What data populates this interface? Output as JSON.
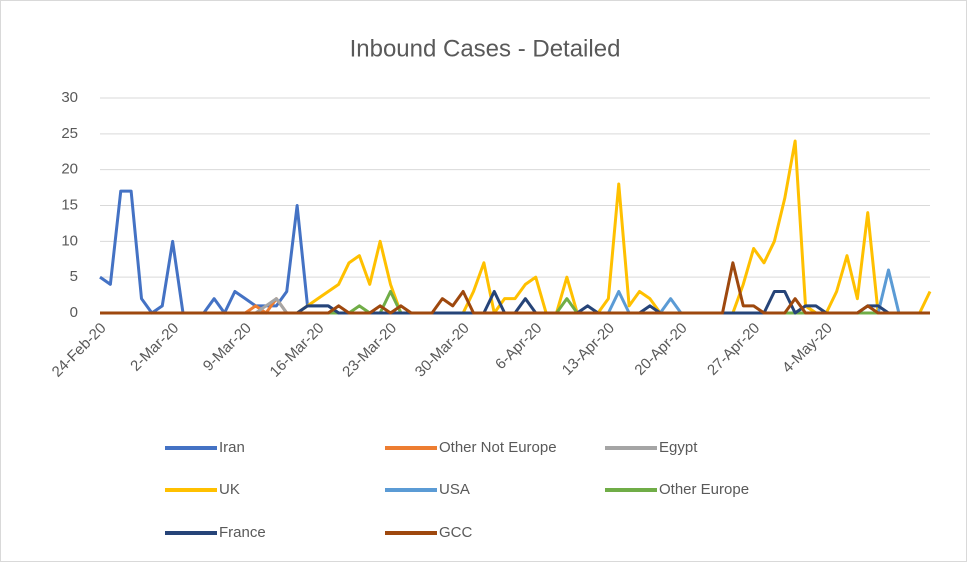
{
  "chart_data": {
    "type": "line",
    "title": "Inbound Cases - Detailed",
    "categories": [
      "24-Feb-20",
      null,
      null,
      null,
      null,
      null,
      null,
      "2-Mar-20",
      null,
      null,
      null,
      null,
      null,
      null,
      "9-Mar-20",
      null,
      null,
      null,
      null,
      null,
      null,
      "16-Mar-20",
      null,
      null,
      null,
      null,
      null,
      null,
      "23-Mar-20",
      null,
      null,
      null,
      null,
      null,
      null,
      "30-Mar-20",
      null,
      null,
      null,
      null,
      null,
      null,
      "6-Apr-20",
      null,
      null,
      null,
      null,
      null,
      null,
      "13-Apr-20",
      null,
      null,
      null,
      null,
      null,
      null,
      "20-Apr-20",
      null,
      null,
      null,
      null,
      null,
      null,
      "27-Apr-20",
      null,
      null,
      null,
      null,
      null,
      null,
      "4-May-20",
      null,
      null,
      null,
      null,
      null,
      null,
      null,
      null,
      null,
      null
    ],
    "ylim": [
      0,
      30
    ],
    "yticks": [
      0,
      5,
      10,
      15,
      20,
      25,
      30
    ],
    "grid": true,
    "series": [
      {
        "name": "Iran",
        "color": "#4472c4",
        "values": [
          5,
          4,
          17,
          17,
          2,
          0,
          1,
          10,
          0,
          0,
          0,
          2,
          0,
          3,
          2,
          1,
          1,
          1,
          3,
          15,
          1,
          1,
          1,
          0,
          0,
          0,
          0,
          0,
          0,
          0,
          0,
          0,
          0,
          0,
          0,
          0,
          0,
          0,
          0,
          0,
          0,
          0,
          0,
          0,
          0,
          0,
          0,
          0,
          0,
          0,
          0,
          0,
          0,
          0,
          0,
          0,
          0,
          0,
          0,
          0,
          0,
          0,
          0,
          0,
          0,
          0,
          0,
          0,
          0,
          0,
          0,
          0,
          0,
          0,
          0,
          0,
          0,
          0,
          0,
          0,
          0
        ]
      },
      {
        "name": "Other Not Europe",
        "color": "#ed7d31",
        "values": [
          0,
          0,
          0,
          0,
          0,
          0,
          0,
          0,
          0,
          0,
          0,
          0,
          0,
          0,
          0,
          1,
          0,
          2,
          0,
          0,
          0,
          0,
          0,
          0,
          0,
          0,
          0,
          0,
          0,
          0,
          0,
          0,
          0,
          0,
          0,
          0,
          0,
          0,
          0,
          0,
          0,
          0,
          0,
          0,
          0,
          0,
          0,
          0,
          0,
          0,
          0,
          0,
          0,
          0,
          0,
          0,
          0,
          0,
          0,
          0,
          0,
          0,
          0,
          0,
          0,
          0,
          0,
          0,
          1,
          0,
          0,
          0,
          0,
          0,
          0,
          0,
          0,
          0,
          0,
          0,
          0
        ]
      },
      {
        "name": "Egypt",
        "color": "#a5a5a5",
        "values": [
          0,
          0,
          0,
          0,
          0,
          0,
          0,
          0,
          0,
          0,
          0,
          0,
          0,
          0,
          0,
          0,
          1,
          2,
          0,
          0,
          0,
          0,
          0,
          0,
          0,
          0,
          0,
          0,
          0,
          0,
          0,
          0,
          0,
          0,
          0,
          0,
          0,
          0,
          0,
          0,
          0,
          0,
          0,
          0,
          0,
          0,
          0,
          0,
          0,
          0,
          0,
          0,
          0,
          0,
          0,
          0,
          0,
          0,
          0,
          0,
          0,
          0,
          0,
          0,
          0,
          0,
          0,
          0,
          0,
          0,
          0,
          0,
          0,
          0,
          0,
          0,
          0,
          0,
          0,
          0,
          0
        ]
      },
      {
        "name": "UK",
        "color": "#ffc000",
        "values": [
          0,
          0,
          0,
          0,
          0,
          0,
          0,
          0,
          0,
          0,
          0,
          0,
          0,
          0,
          0,
          0,
          0,
          0,
          0,
          0,
          1,
          2,
          3,
          4,
          7,
          8,
          4,
          10,
          4,
          0,
          0,
          0,
          0,
          0,
          0,
          0,
          3,
          7,
          0,
          2,
          2,
          4,
          5,
          0,
          0,
          5,
          0,
          0,
          0,
          2,
          18,
          1,
          3,
          2,
          0,
          0,
          0,
          0,
          0,
          0,
          0,
          0,
          4,
          9,
          7,
          10,
          16,
          24,
          1,
          0,
          0,
          3,
          8,
          2,
          14,
          0,
          0,
          0,
          0,
          0,
          3
        ]
      },
      {
        "name": "USA",
        "color": "#5b9bd5",
        "values": [
          0,
          0,
          0,
          0,
          0,
          0,
          0,
          0,
          0,
          0,
          0,
          0,
          0,
          0,
          0,
          0,
          0,
          0,
          0,
          0,
          0,
          0,
          0,
          0,
          0,
          0,
          0,
          0,
          0,
          0,
          0,
          0,
          0,
          0,
          0,
          0,
          0,
          0,
          0,
          0,
          0,
          0,
          0,
          0,
          0,
          0,
          0,
          0,
          0,
          0,
          3,
          0,
          0,
          0,
          0,
          2,
          0,
          0,
          0,
          0,
          0,
          0,
          0,
          0,
          0,
          0,
          0,
          0,
          0,
          0,
          0,
          0,
          0,
          0,
          0,
          0,
          6,
          0,
          0,
          0,
          0
        ]
      },
      {
        "name": "Other Europe",
        "color": "#70ad47",
        "values": [
          0,
          0,
          0,
          0,
          0,
          0,
          0,
          0,
          0,
          0,
          0,
          0,
          0,
          0,
          0,
          0,
          0,
          0,
          0,
          0,
          0,
          0,
          0,
          0,
          0,
          1,
          0,
          0,
          3,
          0,
          0,
          0,
          0,
          0,
          0,
          0,
          0,
          0,
          0,
          0,
          0,
          0,
          0,
          0,
          0,
          2,
          0,
          0,
          0,
          0,
          0,
          0,
          0,
          0,
          0,
          0,
          0,
          0,
          0,
          0,
          0,
          0,
          0,
          0,
          0,
          0,
          0,
          0,
          0,
          0,
          0,
          0,
          0,
          0,
          0,
          0,
          0,
          0,
          0,
          0,
          0
        ]
      },
      {
        "name": "France",
        "color": "#264478",
        "values": [
          0,
          0,
          0,
          0,
          0,
          0,
          0,
          0,
          0,
          0,
          0,
          0,
          0,
          0,
          0,
          0,
          0,
          0,
          0,
          0,
          1,
          1,
          1,
          0,
          0,
          0,
          0,
          0,
          0,
          0,
          0,
          0,
          0,
          0,
          0,
          0,
          0,
          0,
          3,
          0,
          0,
          2,
          0,
          0,
          0,
          0,
          0,
          1,
          0,
          0,
          0,
          0,
          0,
          1,
          0,
          0,
          0,
          0,
          0,
          0,
          0,
          0,
          0,
          0,
          0,
          3,
          3,
          0,
          1,
          1,
          0,
          0,
          0,
          0,
          1,
          1,
          0,
          0,
          0,
          0,
          0
        ]
      },
      {
        "name": "GCC",
        "color": "#9e480e",
        "values": [
          0,
          0,
          0,
          0,
          0,
          0,
          0,
          0,
          0,
          0,
          0,
          0,
          0,
          0,
          0,
          0,
          0,
          0,
          0,
          0,
          0,
          0,
          0,
          1,
          0,
          0,
          0,
          1,
          0,
          1,
          0,
          0,
          0,
          2,
          1,
          3,
          0,
          0,
          0,
          0,
          0,
          0,
          0,
          0,
          0,
          0,
          0,
          0,
          0,
          0,
          0,
          0,
          0,
          0,
          0,
          0,
          0,
          0,
          0,
          0,
          0,
          7,
          1,
          1,
          0,
          0,
          0,
          2,
          0,
          0,
          0,
          0,
          0,
          0,
          1,
          0,
          0,
          0,
          0,
          0,
          0
        ]
      }
    ]
  }
}
